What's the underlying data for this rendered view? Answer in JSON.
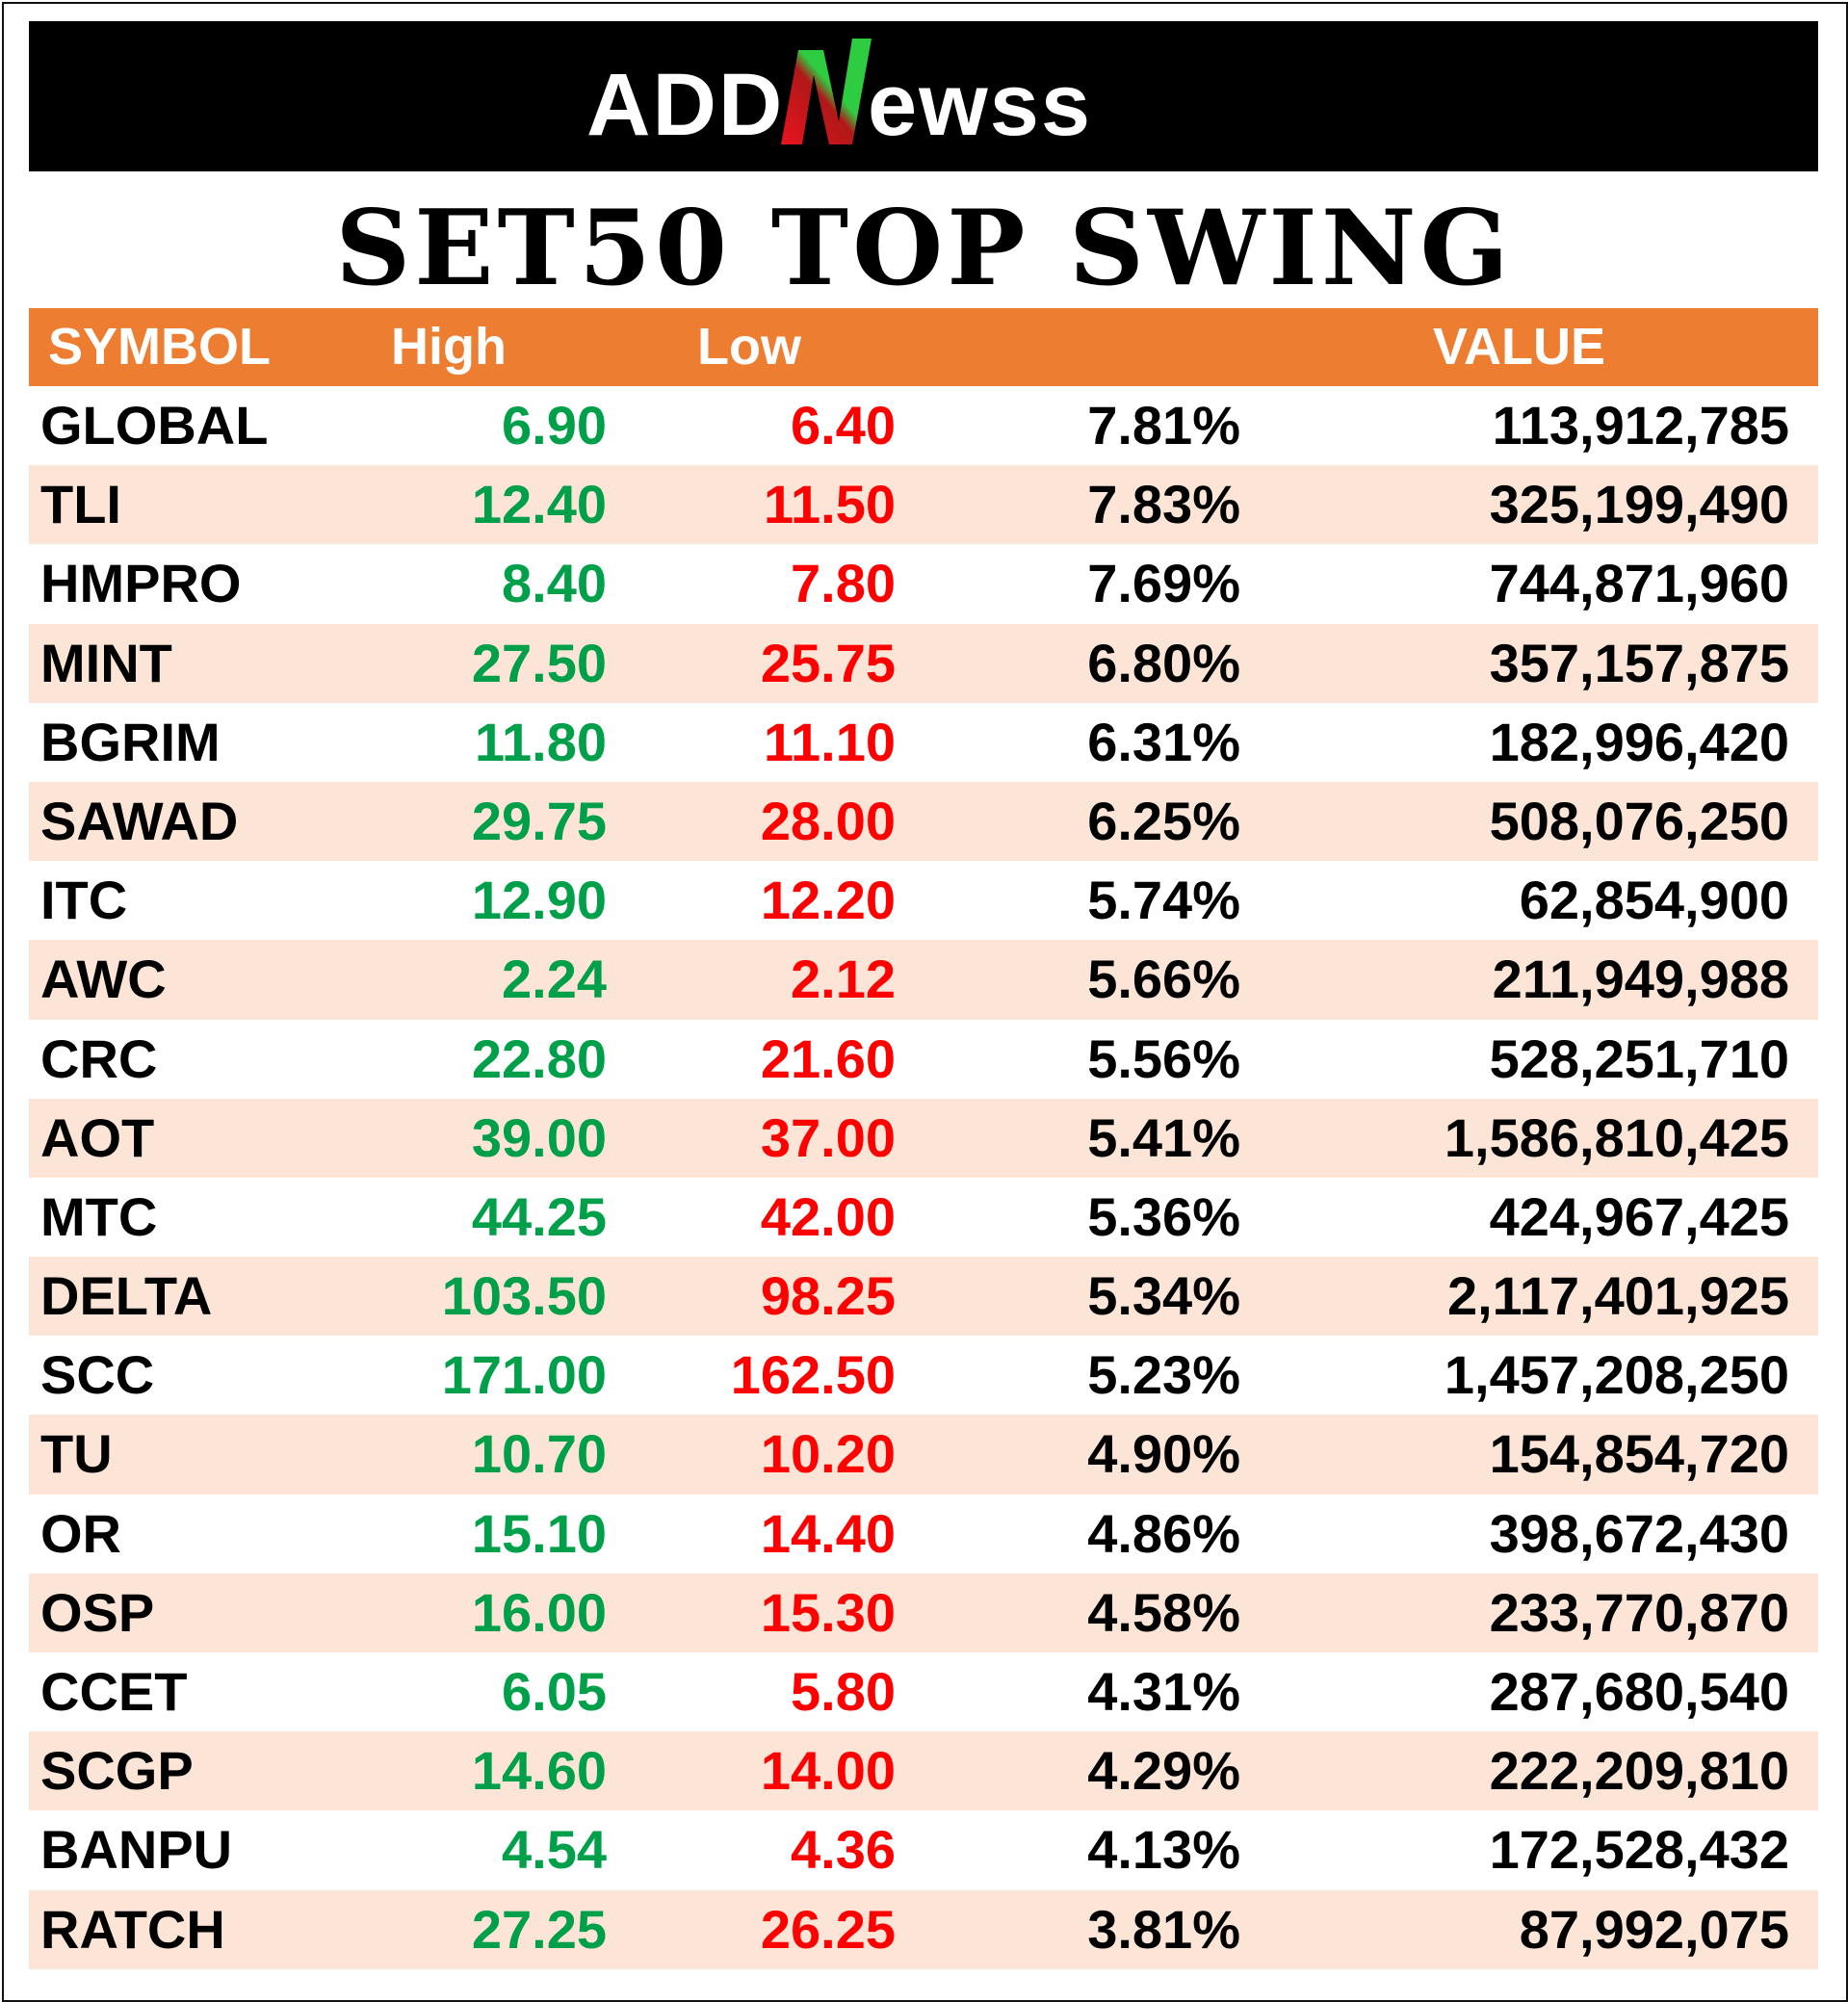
{
  "brand": {
    "logo_text": "ADDNewss",
    "colors": {
      "background": "#000000",
      "text": "#ffffff",
      "accent_green": "#2ECC40",
      "accent_red": "#E8141E"
    }
  },
  "title": "SET50 TOP SWING",
  "table": {
    "header_color": "#ED7D31",
    "alt_row_color": "#FCE4D6",
    "high_color": "#00A04A",
    "low_color": "#FF0000",
    "headers": {
      "symbol": "SYMBOL",
      "high": "High",
      "low": "Low",
      "pct": "",
      "value": "VALUE"
    },
    "rows": [
      {
        "symbol": "GLOBAL",
        "high": "6.90",
        "low": "6.40",
        "pct": "7.81%",
        "value": "113,912,785"
      },
      {
        "symbol": "TLI",
        "high": "12.40",
        "low": "11.50",
        "pct": "7.83%",
        "value": "325,199,490"
      },
      {
        "symbol": "HMPRO",
        "high": "8.40",
        "low": "7.80",
        "pct": "7.69%",
        "value": "744,871,960"
      },
      {
        "symbol": "MINT",
        "high": "27.50",
        "low": "25.75",
        "pct": "6.80%",
        "value": "357,157,875"
      },
      {
        "symbol": "BGRIM",
        "high": "11.80",
        "low": "11.10",
        "pct": "6.31%",
        "value": "182,996,420"
      },
      {
        "symbol": "SAWAD",
        "high": "29.75",
        "low": "28.00",
        "pct": "6.25%",
        "value": "508,076,250"
      },
      {
        "symbol": "ITC",
        "high": "12.90",
        "low": "12.20",
        "pct": "5.74%",
        "value": "62,854,900"
      },
      {
        "symbol": "AWC",
        "high": "2.24",
        "low": "2.12",
        "pct": "5.66%",
        "value": "211,949,988"
      },
      {
        "symbol": "CRC",
        "high": "22.80",
        "low": "21.60",
        "pct": "5.56%",
        "value": "528,251,710"
      },
      {
        "symbol": "AOT",
        "high": "39.00",
        "low": "37.00",
        "pct": "5.41%",
        "value": "1,586,810,425"
      },
      {
        "symbol": "MTC",
        "high": "44.25",
        "low": "42.00",
        "pct": "5.36%",
        "value": "424,967,425"
      },
      {
        "symbol": "DELTA",
        "high": "103.50",
        "low": "98.25",
        "pct": "5.34%",
        "value": "2,117,401,925"
      },
      {
        "symbol": "SCC",
        "high": "171.00",
        "low": "162.50",
        "pct": "5.23%",
        "value": "1,457,208,250"
      },
      {
        "symbol": "TU",
        "high": "10.70",
        "low": "10.20",
        "pct": "4.90%",
        "value": "154,854,720"
      },
      {
        "symbol": "OR",
        "high": "15.10",
        "low": "14.40",
        "pct": "4.86%",
        "value": "398,672,430"
      },
      {
        "symbol": "OSP",
        "high": "16.00",
        "low": "15.30",
        "pct": "4.58%",
        "value": "233,770,870"
      },
      {
        "symbol": "CCET",
        "high": "6.05",
        "low": "5.80",
        "pct": "4.31%",
        "value": "287,680,540"
      },
      {
        "symbol": "SCGP",
        "high": "14.60",
        "low": "14.00",
        "pct": "4.29%",
        "value": "222,209,810"
      },
      {
        "symbol": "BANPU",
        "high": "4.54",
        "low": "4.36",
        "pct": "4.13%",
        "value": "172,528,432"
      },
      {
        "symbol": "RATCH",
        "high": "27.25",
        "low": "26.25",
        "pct": "3.81%",
        "value": "87,992,075"
      }
    ]
  }
}
